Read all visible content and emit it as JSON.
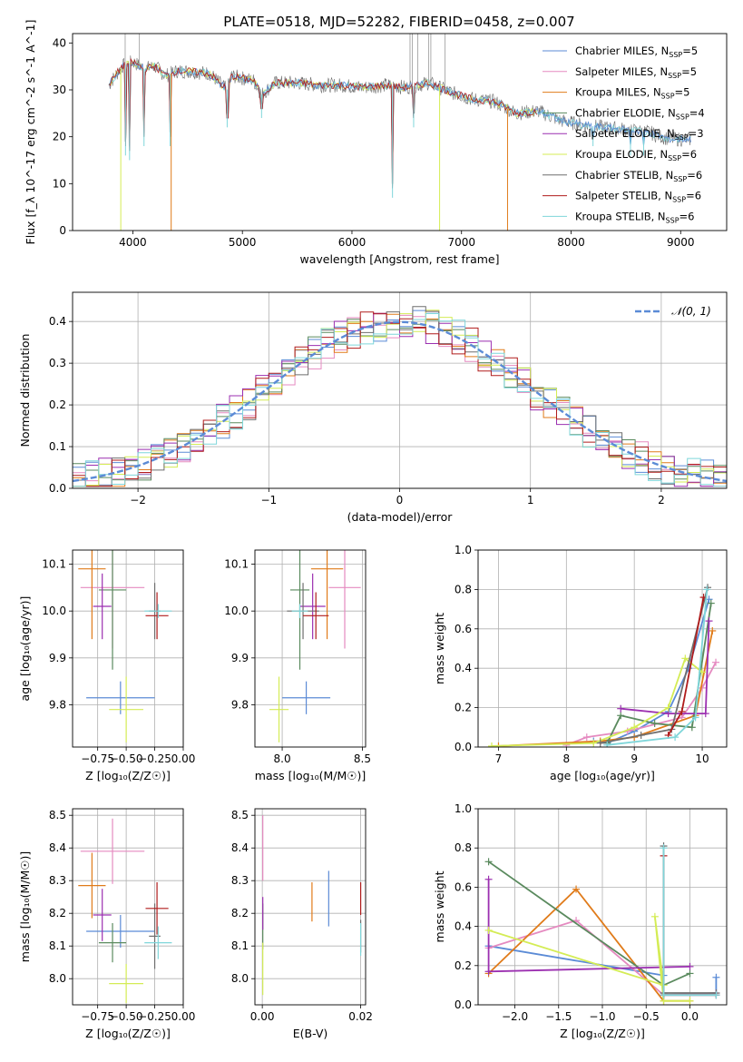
{
  "figure": {
    "title": "PLATE=0518, MJD=52282, FIBERID=0458, z=0.007"
  },
  "colors": {
    "chabrier_miles": "#5b8bd6",
    "salpeter_miles": "#e58ac0",
    "kroupa_miles": "#e07b1a",
    "chabrier_elodie": "#5a8a5e",
    "salpeter_elodie": "#9b2fb0",
    "kroupa_elodie": "#d4ec55",
    "chabrier_stelib": "#6e6e6e",
    "salpeter_stelib": "#b01c1c",
    "kroupa_stelib": "#7fd6da",
    "normal_curve": "#5b8bd6"
  },
  "chart_data": [
    {
      "id": "spectrum",
      "type": "line",
      "title": "PLATE=0518, MJD=52282, FIBERID=0458, z=0.007",
      "xlabel": "wavelength [Angstrom, rest frame]",
      "ylabel": "Flux [f_λ 10^-17 erg cm^-2 s^-1 A^-1]",
      "xlim": [
        3450,
        9420
      ],
      "ylim": [
        0,
        42
      ],
      "xticks": [
        "4000",
        "5000",
        "6000",
        "7000",
        "8000",
        "9000"
      ],
      "yticks": [
        "0",
        "10",
        "20",
        "30",
        "40"
      ],
      "grid": false,
      "legend_position": "top-right",
      "legend": [
        {
          "label": "Chabrier MILES, N",
          "sub": "SSP",
          "suffix": "=5"
        },
        {
          "label": "Salpeter MILES, N",
          "sub": "SSP",
          "suffix": "=5"
        },
        {
          "label": "Kroupa MILES, N",
          "sub": "SSP",
          "suffix": "=5"
        },
        {
          "label": "Chabrier ELODIE, N",
          "sub": "SSP",
          "suffix": "=4"
        },
        {
          "label": "Salpeter ELODIE, N",
          "sub": "SSP",
          "suffix": "=3"
        },
        {
          "label": "Kroupa ELODIE, N",
          "sub": "SSP",
          "suffix": "=6"
        },
        {
          "label": "Chabrier STELIB, N",
          "sub": "SSP",
          "suffix": "=6"
        },
        {
          "label": "Salpeter STELIB, N",
          "sub": "SSP",
          "suffix": "=6"
        },
        {
          "label": "Kroupa STELIB, N",
          "sub": "SSP",
          "suffix": "=6"
        }
      ],
      "data_continuum": {
        "x": [
          3780,
          3900,
          4000,
          4100,
          4200,
          4300,
          4400,
          4500,
          4700,
          4860,
          4900,
          5000,
          5100,
          5175,
          5300,
          5500,
          5700,
          5900,
          6100,
          6300,
          6500,
          6700,
          6900,
          7100,
          7300,
          7500,
          7700,
          7900,
          8100,
          8300,
          8500,
          8700,
          8900,
          9100
        ],
        "y": [
          31,
          35,
          36,
          34.5,
          35,
          33,
          34,
          34,
          33.5,
          30,
          33,
          32.5,
          32,
          29,
          31.5,
          31.5,
          31,
          31,
          30.5,
          31,
          30.5,
          31.5,
          29.5,
          28,
          27.5,
          25,
          25.5,
          23.5,
          22.5,
          22,
          21.5,
          21,
          19.5,
          19.5
        ]
      },
      "data_dips": [
        {
          "x": 3890,
          "y": 0
        },
        {
          "x": 3933,
          "y": 16
        },
        {
          "x": 3970,
          "y": 15
        },
        {
          "x": 4102,
          "y": 18
        },
        {
          "x": 4340,
          "y": 18
        },
        {
          "x": 4350,
          "y": 0
        },
        {
          "x": 4861,
          "y": 22
        },
        {
          "x": 5175,
          "y": 24
        },
        {
          "x": 6370,
          "y": 7
        },
        {
          "x": 6563,
          "y": 22
        },
        {
          "x": 6800,
          "y": 0
        },
        {
          "x": 7420,
          "y": 0
        },
        {
          "x": 8200,
          "y": 18
        },
        {
          "x": 8542,
          "y": 16
        },
        {
          "x": 8662,
          "y": 16
        }
      ],
      "data_spikes": [
        {
          "x": 3930,
          "y": 42
        },
        {
          "x": 4060,
          "y": 42
        },
        {
          "x": 6530,
          "y": 42
        },
        {
          "x": 6550,
          "y": 42
        },
        {
          "x": 6600,
          "y": 42
        },
        {
          "x": 6700,
          "y": 42
        },
        {
          "x": 6720,
          "y": 42
        },
        {
          "x": 6850,
          "y": 42
        }
      ]
    },
    {
      "id": "residuals",
      "type": "histogram",
      "xlabel": "(data-model)/error",
      "ylabel": "Normed distribution",
      "xlim": [
        -2.5,
        2.5
      ],
      "ylim": [
        0,
        0.47
      ],
      "xticks": [
        "−2",
        "−1",
        "0",
        "1",
        "2"
      ],
      "yticks": [
        "0.0",
        "0.1",
        "0.2",
        "0.3",
        "0.4"
      ],
      "grid": true,
      "legend_position": "top-right",
      "legend": [
        {
          "label": "𝒩(0, 1)"
        }
      ],
      "bin_width": 0.1,
      "bin_edges_start": -2.5
    },
    {
      "id": "age-vs-Z",
      "type": "scatter",
      "xlabel": "Z [log₁₀(Z/Z☉)]",
      "ylabel": "age  [log₁₀(age/yr)]",
      "xlim": [
        -0.97,
        0.0
      ],
      "ylim": [
        9.71,
        10.13
      ],
      "xticks": [
        "−0.75",
        "−0.50",
        "−0.25",
        "0.00"
      ],
      "yticks": [
        "9.8",
        "9.9",
        "10.0",
        "10.1"
      ],
      "grid": true,
      "points": [
        {
          "series": "chabrier_miles",
          "x": -0.55,
          "y": 9.815,
          "xerr": 0.3,
          "yerr": 0.035
        },
        {
          "series": "salpeter_miles",
          "x": -0.62,
          "y": 10.05,
          "xerr": 0.28,
          "yerr": 0.13
        },
        {
          "series": "kroupa_miles",
          "x": -0.8,
          "y": 10.09,
          "xerr": 0.12,
          "yerr": 0.15
        },
        {
          "series": "chabrier_elodie",
          "x": -0.62,
          "y": 10.045,
          "xerr": 0.12,
          "yerr": 0.17
        },
        {
          "series": "salpeter_elodie",
          "x": -0.71,
          "y": 10.01,
          "xerr": 0.08,
          "yerr": 0.07
        },
        {
          "series": "kroupa_elodie",
          "x": -0.5,
          "y": 9.79,
          "xerr": 0.15,
          "yerr": 0.07
        },
        {
          "series": "chabrier_stelib",
          "x": -0.25,
          "y": 10.0,
          "xerr": 0.05,
          "yerr": 0.06
        },
        {
          "series": "salpeter_stelib",
          "x": -0.23,
          "y": 9.99,
          "xerr": 0.1,
          "yerr": 0.05
        },
        {
          "series": "kroupa_stelib",
          "x": -0.22,
          "y": 10.0,
          "xerr": 0.12,
          "yerr": 0.015
        }
      ]
    },
    {
      "id": "age-vs-mass",
      "type": "scatter",
      "xlabel": "mass [log₁₀(M/M☉)]",
      "ylabel": "",
      "xlim": [
        7.83,
        8.52
      ],
      "ylim": [
        9.71,
        10.13
      ],
      "xticks": [
        "8.0",
        "8.5"
      ],
      "yticks": [
        "9.8",
        "9.9",
        "10.0",
        "10.1"
      ],
      "grid": true,
      "points": [
        {
          "series": "chabrier_miles",
          "x": 8.15,
          "y": 9.815,
          "xerr": 0.15,
          "yerr": 0.035
        },
        {
          "series": "salpeter_miles",
          "x": 8.39,
          "y": 10.05,
          "xerr": 0.1,
          "yerr": 0.13
        },
        {
          "series": "kroupa_miles",
          "x": 8.28,
          "y": 10.09,
          "xerr": 0.1,
          "yerr": 0.15
        },
        {
          "series": "chabrier_elodie",
          "x": 8.11,
          "y": 10.045,
          "xerr": 0.06,
          "yerr": 0.17
        },
        {
          "series": "salpeter_elodie",
          "x": 8.19,
          "y": 10.01,
          "xerr": 0.08,
          "yerr": 0.07
        },
        {
          "series": "kroupa_elodie",
          "x": 7.98,
          "y": 9.79,
          "xerr": 0.06,
          "yerr": 0.07
        },
        {
          "series": "chabrier_stelib",
          "x": 8.13,
          "y": 10.0,
          "xerr": 0.1,
          "yerr": 0.06
        },
        {
          "series": "salpeter_stelib",
          "x": 8.21,
          "y": 9.99,
          "xerr": 0.08,
          "yerr": 0.05
        },
        {
          "series": "kroupa_stelib",
          "x": 8.11,
          "y": 10.0,
          "xerr": 0.05,
          "yerr": 0.015
        }
      ]
    },
    {
      "id": "weight-vs-age",
      "type": "line",
      "xlabel": "age  [log₁₀(age/yr)]",
      "ylabel": "mass weight",
      "xlim": [
        6.7,
        10.36
      ],
      "ylim": [
        0,
        1.0
      ],
      "xticks": [
        "7",
        "8",
        "9",
        "10"
      ],
      "yticks": [
        "0.0",
        "0.2",
        "0.4",
        "0.6",
        "0.8",
        "1.0"
      ],
      "grid": true,
      "series": [
        {
          "key": "chabrier_miles",
          "x": [
            8.4,
            8.6,
            9.0,
            9.5,
            9.8,
            10.1
          ],
          "y": [
            0.03,
            0.02,
            0.08,
            0.18,
            0.4,
            0.75
          ]
        },
        {
          "key": "salpeter_miles",
          "x": [
            8.0,
            8.3,
            8.9,
            9.7,
            10.0,
            10.2
          ],
          "y": [
            0.01,
            0.05,
            0.08,
            0.15,
            0.3,
            0.43
          ]
        },
        {
          "key": "kroupa_miles",
          "x": [
            7.0,
            8.5,
            9.0,
            9.9,
            10.15
          ],
          "y": [
            0.005,
            0.03,
            0.05,
            0.16,
            0.59
          ]
        },
        {
          "key": "chabrier_elodie",
          "x": [
            8.6,
            8.8,
            9.3,
            9.85,
            10.13
          ],
          "y": [
            0.02,
            0.16,
            0.12,
            0.1,
            0.73
          ]
        },
        {
          "key": "salpeter_elodie",
          "x": [
            8.8,
            9.5,
            10.05,
            10.1
          ],
          "y": [
            0.195,
            0.17,
            0.17,
            0.64
          ]
        },
        {
          "key": "kroupa_elodie",
          "x": [
            6.9,
            8.4,
            9.0,
            9.5,
            9.75,
            10.0
          ],
          "y": [
            0.005,
            0.02,
            0.1,
            0.2,
            0.45,
            0.38
          ]
        },
        {
          "key": "chabrier_stelib",
          "x": [
            8.5,
            9.1,
            9.55,
            10.08
          ],
          "y": [
            0.02,
            0.06,
            0.09,
            0.81
          ]
        },
        {
          "key": "salpeter_stelib",
          "x": [
            9.5,
            9.7,
            10.02
          ],
          "y": [
            0.06,
            0.18,
            0.76
          ]
        },
        {
          "key": "kroupa_stelib",
          "x": [
            8.6,
            9.6,
            9.9,
            10.07
          ],
          "y": [
            0.01,
            0.05,
            0.15,
            0.8
          ]
        }
      ]
    },
    {
      "id": "mass-vs-Z",
      "type": "scatter",
      "xlabel": "Z [log₁₀(Z/Z☉)]",
      "ylabel": "mass [log₁₀(M/M☉)]",
      "xlim": [
        -0.97,
        0.0
      ],
      "ylim": [
        7.92,
        8.52
      ],
      "xticks": [
        "−0.75",
        "−0.50",
        "−0.25",
        "0.00"
      ],
      "yticks": [
        "8.0",
        "8.1",
        "8.2",
        "8.3",
        "8.4",
        "8.5"
      ],
      "grid": true,
      "points": [
        {
          "series": "chabrier_miles",
          "x": -0.55,
          "y": 8.145,
          "xerr": 0.3,
          "yerr": 0.05
        },
        {
          "series": "salpeter_miles",
          "x": -0.62,
          "y": 8.39,
          "xerr": 0.28,
          "yerr": 0.1
        },
        {
          "series": "kroupa_miles",
          "x": -0.8,
          "y": 8.285,
          "xerr": 0.12,
          "yerr": 0.1
        },
        {
          "series": "chabrier_elodie",
          "x": -0.62,
          "y": 8.11,
          "xerr": 0.12,
          "yerr": 0.06
        },
        {
          "series": "salpeter_elodie",
          "x": -0.71,
          "y": 8.195,
          "xerr": 0.08,
          "yerr": 0.08
        },
        {
          "series": "kroupa_elodie",
          "x": -0.5,
          "y": 7.985,
          "xerr": 0.15,
          "yerr": 0.06
        },
        {
          "series": "chabrier_stelib",
          "x": -0.25,
          "y": 8.13,
          "xerr": 0.05,
          "yerr": 0.1
        },
        {
          "series": "salpeter_stelib",
          "x": -0.23,
          "y": 8.215,
          "xerr": 0.1,
          "yerr": 0.08
        },
        {
          "series": "kroupa_stelib",
          "x": -0.22,
          "y": 8.11,
          "xerr": 0.12,
          "yerr": 0.05
        }
      ]
    },
    {
      "id": "mass-vs-ebv",
      "type": "scatter",
      "xlabel": "E(B-V)",
      "ylabel": "",
      "xlim": [
        -0.0015,
        0.021
      ],
      "ylim": [
        7.92,
        8.52
      ],
      "xticks": [
        "0.00",
        "0.02"
      ],
      "yticks": [
        "8.0",
        "8.1",
        "8.2",
        "8.3",
        "8.4",
        "8.5"
      ],
      "grid": true,
      "points": [
        {
          "series": "chabrier_miles",
          "x": 0.0135,
          "y": 8.245,
          "xerr": 0,
          "yerr": 0.085
        },
        {
          "series": "salpeter_miles",
          "x": 0.0001,
          "y": 8.4,
          "xerr": 0,
          "yerr": 0.1
        },
        {
          "series": "kroupa_miles",
          "x": 0.0101,
          "y": 8.235,
          "xerr": 0,
          "yerr": 0.06
        },
        {
          "series": "chabrier_elodie",
          "x": 0.0001,
          "y": 8.16,
          "xerr": 0,
          "yerr": 0.07
        },
        {
          "series": "salpeter_elodie",
          "x": 0.0001,
          "y": 8.2,
          "xerr": 0,
          "yerr": 0.05
        },
        {
          "series": "kroupa_elodie",
          "x": 0.0001,
          "y": 8.03,
          "xerr": 0,
          "yerr": 0.08
        },
        {
          "series": "chabrier_stelib",
          "x": 0.02,
          "y": 8.13,
          "xerr": 0,
          "yerr": 0.05
        },
        {
          "series": "salpeter_stelib",
          "x": 0.02,
          "y": 8.245,
          "xerr": 0,
          "yerr": 0.05
        },
        {
          "series": "kroupa_stelib",
          "x": 0.02,
          "y": 8.12,
          "xerr": 0,
          "yerr": 0.05
        }
      ]
    },
    {
      "id": "weight-vs-Z",
      "type": "line",
      "xlabel": "Z [log₁₀(Z/Z☉)]",
      "ylabel": "mass weight",
      "xlim": [
        -2.42,
        0.42
      ],
      "ylim": [
        0,
        1.0
      ],
      "xticks": [
        "−2.0",
        "−1.5",
        "−1.0",
        "−0.5",
        "0.0"
      ],
      "yticks": [
        "0.0",
        "0.2",
        "0.4",
        "0.6",
        "0.8",
        "1.0"
      ],
      "grid": true,
      "series": [
        {
          "key": "chabrier_miles",
          "x": [
            -2.3,
            -0.3,
            -0.3,
            0.3,
            0.3
          ],
          "y": [
            0.3,
            0.15,
            0.05,
            0.05,
            0.14
          ]
        },
        {
          "key": "salpeter_miles",
          "x": [
            -2.3,
            -1.3,
            -0.3,
            0.3
          ],
          "y": [
            0.29,
            0.43,
            0.05,
            0.06
          ]
        },
        {
          "key": "kroupa_miles",
          "x": [
            -2.3,
            -1.3,
            -0.3,
            0.0
          ],
          "y": [
            0.16,
            0.59,
            0.02,
            0.02
          ]
        },
        {
          "key": "chabrier_elodie",
          "x": [
            -2.3,
            -0.3,
            0.0
          ],
          "y": [
            0.73,
            0.1,
            0.16
          ]
        },
        {
          "key": "salpeter_elodie",
          "x": [
            -2.3,
            -2.3,
            0.0
          ],
          "y": [
            0.64,
            0.17,
            0.195
          ]
        },
        {
          "key": "kroupa_elodie",
          "x": [
            -2.3,
            -0.3,
            -0.4,
            -0.3,
            0.0
          ],
          "y": [
            0.38,
            0.1,
            0.45,
            0.02,
            0.02
          ]
        },
        {
          "key": "chabrier_stelib",
          "x": [
            -0.3,
            -0.3,
            0.3
          ],
          "y": [
            0.81,
            0.06,
            0.06
          ]
        },
        {
          "key": "salpeter_stelib",
          "x": [
            -0.3,
            -0.3,
            0.3
          ],
          "y": [
            0.76,
            0.05,
            0.05
          ]
        },
        {
          "key": "kroupa_stelib",
          "x": [
            -0.3,
            -0.3,
            0.3
          ],
          "y": [
            0.8,
            0.05,
            0.05
          ]
        }
      ]
    }
  ]
}
